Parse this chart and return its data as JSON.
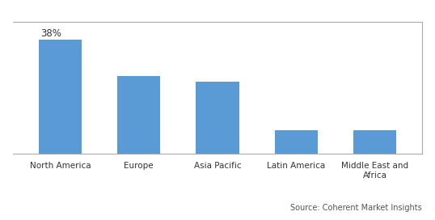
{
  "categories": [
    "North America",
    "Europe",
    "Asia Pacific",
    "Latin America",
    "Middle East and\nAfrica"
  ],
  "values": [
    38,
    26,
    24,
    8,
    8
  ],
  "bar_color": "#5B9BD5",
  "annotation_label": "38%",
  "annotation_bar_index": 0,
  "ylim": [
    0,
    44
  ],
  "grid_color": "#D0D0D0",
  "background_color": "#FFFFFF",
  "source_text": "Source: Coherent Market Insights",
  "bar_width": 0.55,
  "border_color": "#AAAAAA"
}
